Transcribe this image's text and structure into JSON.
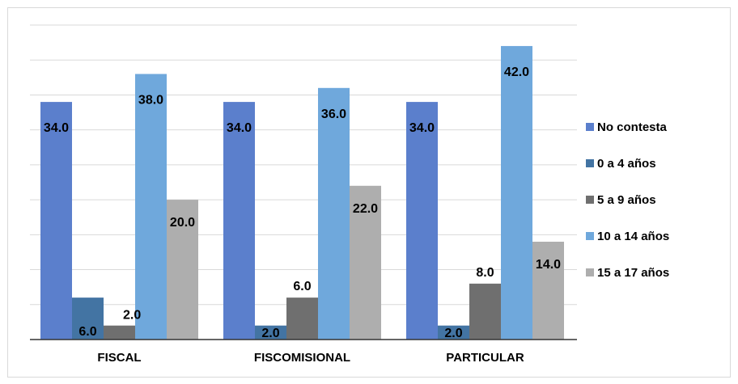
{
  "chart_data": {
    "type": "bar",
    "categories": [
      "FISCAL",
      "FISCOMISIONAL",
      "PARTICULAR"
    ],
    "series": [
      {
        "name": "No contesta",
        "color": "#5b7fcc",
        "values": [
          34.0,
          34.0,
          34.0
        ]
      },
      {
        "name": "0 a 4 años",
        "color": "#4374a3",
        "values": [
          6.0,
          2.0,
          2.0
        ]
      },
      {
        "name": "5 a 9 años",
        "color": "#6f6f6f",
        "values": [
          2.0,
          6.0,
          8.0
        ]
      },
      {
        "name": "10 a 14 años",
        "color": "#6fa8dc",
        "values": [
          38.0,
          36.0,
          42.0
        ]
      },
      {
        "name": "15 a 17 años",
        "color": "#aeaeae",
        "values": [
          20.0,
          22.0,
          14.0
        ]
      }
    ],
    "value_labels": [
      [
        "34.0",
        "6.0",
        "2.0",
        "38.0",
        "20.0"
      ],
      [
        "34.0",
        "2.0",
        "6.0",
        "36.0",
        "22.0"
      ],
      [
        "34.0",
        "2.0",
        "8.0",
        "42.0",
        "14.0"
      ]
    ],
    "ylim": [
      0,
      45
    ],
    "grid": true,
    "legend_position": "right",
    "title": "",
    "xlabel": "",
    "ylabel": ""
  }
}
